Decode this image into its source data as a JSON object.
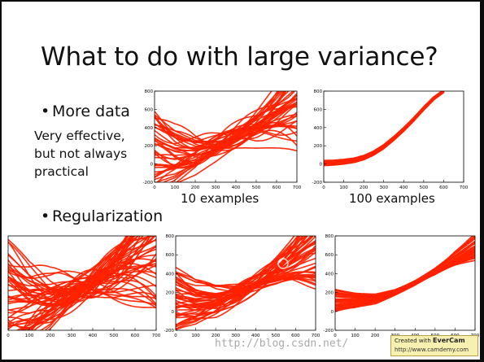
{
  "slide": {
    "title": "What to do with large variance?",
    "bullets": [
      "More data",
      "Regularization"
    ],
    "note_lines": [
      "Very effective,",
      "but not always",
      "practical"
    ],
    "captions": [
      "10 examples",
      "100 examples"
    ]
  },
  "footer": {
    "watermark": "http://blog.csdn.net/",
    "badge_line1": "Created with",
    "badge_brand": "EverCam",
    "badge_url": "http://www.camdemy.com"
  },
  "colors": {
    "curve": "#ff2200",
    "background": "#ffffff"
  },
  "chart_data": [
    {
      "type": "line",
      "title": "",
      "xticks": [
        "0",
        "100",
        "200",
        "300",
        "400",
        "500",
        "600",
        "700"
      ],
      "yticks": [
        "800",
        "600",
        "400",
        "200",
        "0",
        "-200"
      ],
      "xlim": [
        0,
        700
      ],
      "ylim": [
        -200,
        800
      ],
      "description_caption": "10 examples",
      "series": [
        {
          "values_note": "many high-variance polynomial fits",
          "x": [
            0,
            100,
            200,
            300,
            400,
            500,
            600,
            700
          ],
          "y": [
            150,
            100,
            120,
            200,
            300,
            420,
            560,
            700
          ]
        }
      ]
    },
    {
      "type": "line",
      "title": "",
      "xticks": [
        "0",
        "100",
        "200",
        "300",
        "400",
        "500",
        "600",
        "700"
      ],
      "yticks": [
        "800",
        "600",
        "400",
        "200",
        "0",
        "-200"
      ],
      "xlim": [
        0,
        700
      ],
      "ylim": [
        -200,
        800
      ],
      "series": [
        {
          "x": [
            0,
            50,
            100,
            150,
            200,
            250,
            300,
            350,
            400,
            450,
            500,
            550,
            600
          ],
          "y": [
            10,
            15,
            25,
            40,
            70,
            120,
            190,
            280,
            380,
            490,
            610,
            720,
            800
          ]
        }
      ]
    },
    {
      "type": "line",
      "title": "",
      "xticks": [
        "0",
        "100",
        "200",
        "300",
        "400",
        "500",
        "600",
        "700"
      ],
      "xlim": [
        0,
        700
      ],
      "ylim": [
        -200,
        800
      ],
      "series": [
        {
          "x": [
            0,
            100,
            200,
            300,
            400,
            500,
            600,
            700
          ],
          "y": [
            150,
            100,
            120,
            200,
            300,
            420,
            560,
            700
          ]
        }
      ]
    },
    {
      "type": "line",
      "title": "",
      "xticks": [
        "0",
        "100",
        "200",
        "300",
        "400",
        "500",
        "600",
        "700"
      ],
      "yticks": [
        "800",
        "600",
        "400",
        "200",
        "0",
        "-200"
      ],
      "xlim": [
        0,
        700
      ],
      "ylim": [
        -200,
        800
      ],
      "series": [
        {
          "x": [
            0,
            100,
            200,
            300,
            400,
            500,
            600,
            700
          ],
          "y": [
            150,
            100,
            120,
            200,
            300,
            420,
            560,
            700
          ]
        }
      ]
    },
    {
      "type": "line",
      "title": "",
      "xticks": [
        "0",
        "100",
        "200",
        "300",
        "400",
        "500",
        "600",
        "700"
      ],
      "yticks": [
        "800",
        "600",
        "400",
        "200",
        "0",
        "-200"
      ],
      "xlim": [
        0,
        700
      ],
      "ylim": [
        -200,
        800
      ],
      "series": [
        {
          "x": [
            0,
            100,
            200,
            300,
            400,
            500,
            600,
            700
          ],
          "y": [
            110,
            110,
            130,
            200,
            300,
            420,
            560,
            680
          ]
        }
      ]
    }
  ]
}
